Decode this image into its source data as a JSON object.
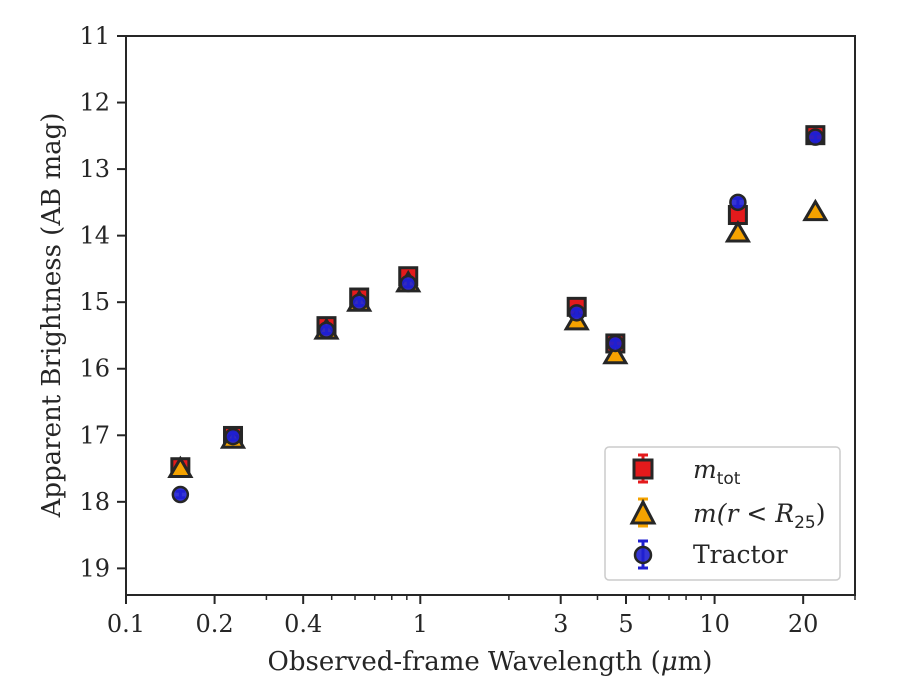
{
  "chart_data": {
    "type": "scatter",
    "xscale": "log",
    "xlim": [
      0.1,
      30
    ],
    "ylim": [
      19.4,
      11
    ],
    "y_inverted": true,
    "xlabel_prefix": "Observed-frame Wavelength (",
    "xlabel_mu": "μ",
    "xlabel_suffix": "m)",
    "ylabel": "Apparent Brightness (AB mag)",
    "x_ticks": [
      {
        "value": 0.1,
        "label": "0.1"
      },
      {
        "value": 0.2,
        "label": "0.2"
      },
      {
        "value": 0.4,
        "label": "0.4"
      },
      {
        "value": 1,
        "label": "1"
      },
      {
        "value": 3,
        "label": "3"
      },
      {
        "value": 5,
        "label": "5"
      },
      {
        "value": 10,
        "label": "10"
      },
      {
        "value": 20,
        "label": "20"
      }
    ],
    "x_minor_ticks": [
      0.3,
      0.5,
      0.6,
      0.7,
      0.8,
      0.9,
      2,
      4,
      6,
      7,
      8,
      9,
      30
    ],
    "y_ticks": [
      {
        "value": 11,
        "label": "11"
      },
      {
        "value": 12,
        "label": "12"
      },
      {
        "value": 13,
        "label": "13"
      },
      {
        "value": 14,
        "label": "14"
      },
      {
        "value": 15,
        "label": "15"
      },
      {
        "value": 16,
        "label": "16"
      },
      {
        "value": 17,
        "label": "17"
      },
      {
        "value": 18,
        "label": "18"
      },
      {
        "value": 19,
        "label": "19"
      }
    ],
    "legend_position": "lower-right",
    "series": [
      {
        "name": "m_tot",
        "marker": "square",
        "color": "#e41a1c",
        "edge": "#262626",
        "points": [
          {
            "x": 0.153,
            "y": 17.48,
            "err": 0.06
          },
          {
            "x": 0.231,
            "y": 17.01,
            "err": 0.05
          },
          {
            "x": 0.48,
            "y": 15.36,
            "err": 0.05
          },
          {
            "x": 0.62,
            "y": 14.93,
            "err": 0.05
          },
          {
            "x": 0.91,
            "y": 14.61,
            "err": 0.05
          },
          {
            "x": 3.4,
            "y": 15.07,
            "err": 0.05
          },
          {
            "x": 4.6,
            "y": 15.62,
            "err": 0.05
          },
          {
            "x": 12.0,
            "y": 13.69,
            "err": 0.07
          },
          {
            "x": 22.0,
            "y": 12.49,
            "err": 0.05
          }
        ]
      },
      {
        "name": "m(r < R25)",
        "marker": "triangle",
        "color": "#f5a300",
        "edge": "#262626",
        "points": [
          {
            "x": 0.153,
            "y": 17.5,
            "err": 0.04
          },
          {
            "x": 0.231,
            "y": 17.06,
            "err": 0.04
          },
          {
            "x": 0.48,
            "y": 15.42,
            "err": 0.04
          },
          {
            "x": 0.62,
            "y": 15.0,
            "err": 0.04
          },
          {
            "x": 0.91,
            "y": 14.71,
            "err": 0.04
          },
          {
            "x": 3.4,
            "y": 15.28,
            "err": 0.04
          },
          {
            "x": 4.6,
            "y": 15.79,
            "err": 0.04
          },
          {
            "x": 12.0,
            "y": 13.96,
            "err": 0.04
          },
          {
            "x": 22.0,
            "y": 13.64,
            "err": 0.04
          }
        ]
      },
      {
        "name": "Tractor",
        "marker": "circle",
        "color": "#1f1fd0",
        "edge": "#262626",
        "points": [
          {
            "x": 0.153,
            "y": 17.89,
            "err": 0.05
          },
          {
            "x": 0.231,
            "y": 17.02,
            "err": 0.05
          },
          {
            "x": 0.48,
            "y": 15.42,
            "err": 0.05
          },
          {
            "x": 0.62,
            "y": 15.0,
            "err": 0.05
          },
          {
            "x": 0.91,
            "y": 14.72,
            "err": 0.05
          },
          {
            "x": 3.4,
            "y": 15.16,
            "err": 0.05
          },
          {
            "x": 4.6,
            "y": 15.62,
            "err": 0.05
          },
          {
            "x": 12.0,
            "y": 13.5,
            "err": 0.06
          },
          {
            "x": 22.0,
            "y": 12.52,
            "err": 0.05
          }
        ]
      }
    ],
    "legend": {
      "m_tot_italic": "m",
      "m_tot_sub": "tot",
      "m_r_prefix": "m(r",
      "m_r_lt": " < ",
      "m_r_R": "R",
      "m_r_sub": "25",
      "m_r_suffix": ")",
      "tractor": "Tractor"
    }
  }
}
